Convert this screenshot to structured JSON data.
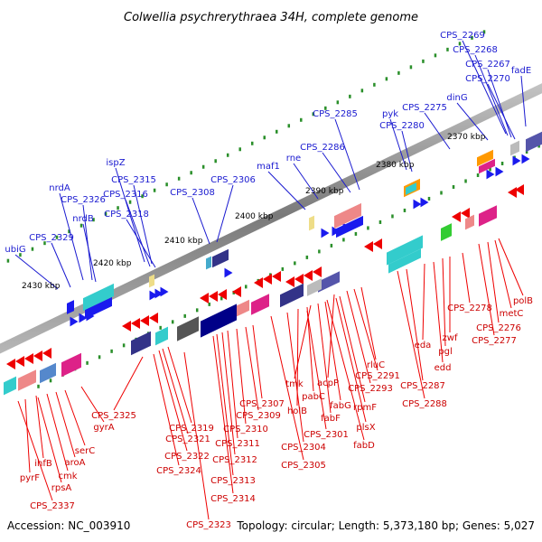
{
  "title": "Colwellia psychrerythraea 34H, complete genome",
  "footer": {
    "accession": "Accession: NC_003910",
    "topology": "Topology: circular; Length: 5,373,180 bp; Genes: 5,027"
  },
  "ticks": [
    "2370 kbp",
    "2380 kbp",
    "2390 kbp",
    "2400 kbp",
    "2410 kbp",
    "2420 kbp",
    "2430 kbp"
  ],
  "blue_labels": [
    "CPS_2269",
    "CPS_2268",
    "CPS_2267",
    "CPS_2270",
    "fadE",
    "dinG",
    "CPS_2275",
    "pyk",
    "CPS_2280",
    "CPS_2285",
    "CPS_2286",
    "rne",
    "maf1",
    "CPS_2306",
    "CPS_2308",
    "ispZ",
    "CPS_2315",
    "CPS_2316",
    "CPS_2318",
    "nrdA",
    "CPS_2326",
    "nrdB",
    "CPS_2329",
    "ubiG"
  ],
  "red_labels": [
    "polB",
    "metC",
    "CPS_2276",
    "CPS_2277",
    "CPS_2278",
    "zwf",
    "pgl",
    "edd",
    "eda",
    "CPS_2287",
    "CPS_2288",
    "rluC",
    "CPS_2291",
    "CPS_2293",
    "acpP",
    "rpmF",
    "plsX",
    "fabD",
    "fabG",
    "fabF",
    "tmk",
    "pabC",
    "holB",
    "CPS_2301",
    "CPS_2304",
    "CPS_2305",
    "CPS_2307",
    "CPS_2309",
    "CPS_2310",
    "CPS_2311",
    "CPS_2312",
    "CPS_2313",
    "CPS_2314",
    "CPS_2319",
    "CPS_2321",
    "CPS_2322",
    "CPS_2323",
    "CPS_2324",
    "CPS_2325",
    "gyrA",
    "serC",
    "aroA",
    "cmk",
    "ihfB",
    "rpsA",
    "pyrF",
    "CPS_2337"
  ]
}
